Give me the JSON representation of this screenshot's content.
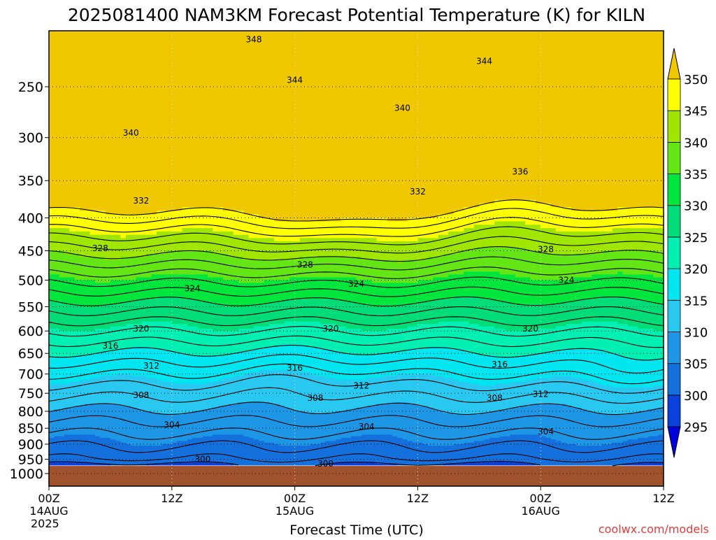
{
  "title": "2025081400 NAM3KM Forecast Potential Temperature (K) for KILN",
  "footer": {
    "credit": "coolwx.com/models"
  },
  "chart_data": {
    "type": "contour",
    "xlabel": "Forecast Time (UTC)",
    "ylabel": "",
    "x_ticks": [
      {
        "hour": 0,
        "labels": [
          "00Z",
          "14AUG",
          "2025"
        ]
      },
      {
        "hour": 12,
        "labels": [
          "12Z"
        ]
      },
      {
        "hour": 24,
        "labels": [
          "00Z",
          "15AUG"
        ]
      },
      {
        "hour": 36,
        "labels": [
          "12Z"
        ]
      },
      {
        "hour": 48,
        "labels": [
          "00Z",
          "16AUG"
        ]
      },
      {
        "hour": 60,
        "labels": [
          "12Z"
        ]
      }
    ],
    "xlim": [
      0,
      60
    ],
    "y_ticks": [
      250,
      300,
      350,
      400,
      450,
      500,
      550,
      600,
      650,
      700,
      750,
      800,
      850,
      900,
      950,
      1000
    ],
    "ylim": [
      1000,
      200
    ],
    "y_scale": "log-pressure",
    "colorbar": {
      "unit": "K",
      "levels": [
        295,
        300,
        305,
        310,
        315,
        320,
        325,
        330,
        335,
        340,
        345,
        350
      ],
      "colors": [
        "#0000dc",
        "#0a40dc",
        "#1470dc",
        "#1e96e6",
        "#28c8f0",
        "#00e6f0",
        "#00f0b4",
        "#00dc78",
        "#00e63c",
        "#64e614",
        "#a0e600",
        "#ffff00",
        "#f0c800"
      ]
    },
    "terrain_color": "#a0522d",
    "surface_pressure": 973,
    "contour_labels": [
      {
        "hour": 20.0,
        "pressure": 211,
        "value": "348"
      },
      {
        "hour": 42.5,
        "pressure": 228,
        "value": "344"
      },
      {
        "hour": 24.0,
        "pressure": 244,
        "value": "344"
      },
      {
        "hour": 34.5,
        "pressure": 270,
        "value": "340"
      },
      {
        "hour": 8.0,
        "pressure": 295,
        "value": "340"
      },
      {
        "hour": 46.0,
        "pressure": 339,
        "value": "336"
      },
      {
        "hour": 36.0,
        "pressure": 364,
        "value": "332"
      },
      {
        "hour": 9.0,
        "pressure": 376,
        "value": "332"
      },
      {
        "hour": 5.0,
        "pressure": 446,
        "value": "328"
      },
      {
        "hour": 48.5,
        "pressure": 448,
        "value": "328"
      },
      {
        "hour": 25.0,
        "pressure": 473,
        "value": "328"
      },
      {
        "hour": 50.5,
        "pressure": 500,
        "value": "324"
      },
      {
        "hour": 30.0,
        "pressure": 507,
        "value": "324"
      },
      {
        "hour": 14.0,
        "pressure": 515,
        "value": "324"
      },
      {
        "hour": 9.0,
        "pressure": 595,
        "value": "320"
      },
      {
        "hour": 27.5,
        "pressure": 595,
        "value": "320"
      },
      {
        "hour": 47.0,
        "pressure": 595,
        "value": "320"
      },
      {
        "hour": 6.0,
        "pressure": 633,
        "value": "316"
      },
      {
        "hour": 44.0,
        "pressure": 676,
        "value": "316"
      },
      {
        "hour": 10.0,
        "pressure": 680,
        "value": "312"
      },
      {
        "hour": 24.0,
        "pressure": 685,
        "value": "316"
      },
      {
        "hour": 30.5,
        "pressure": 730,
        "value": "312"
      },
      {
        "hour": 48.0,
        "pressure": 752,
        "value": "312"
      },
      {
        "hour": 9.0,
        "pressure": 755,
        "value": "308"
      },
      {
        "hour": 26.0,
        "pressure": 763,
        "value": "308"
      },
      {
        "hour": 43.5,
        "pressure": 763,
        "value": "308"
      },
      {
        "hour": 12.0,
        "pressure": 840,
        "value": "304"
      },
      {
        "hour": 31.0,
        "pressure": 845,
        "value": "304"
      },
      {
        "hour": 48.5,
        "pressure": 860,
        "value": "304"
      },
      {
        "hour": 15.0,
        "pressure": 950,
        "value": "300"
      },
      {
        "hour": 27.0,
        "pressure": 966,
        "value": "300"
      }
    ]
  }
}
